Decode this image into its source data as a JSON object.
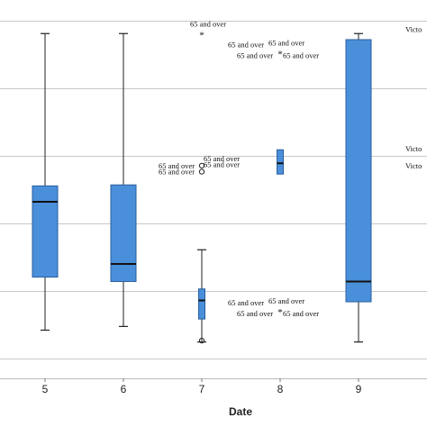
{
  "chart_data": {
    "type": "boxplot",
    "xlabel": "Date",
    "categories": [
      "5",
      "6",
      "7",
      "8",
      "9"
    ],
    "boxes": [
      {
        "category": "5",
        "whisker_low": 0.084,
        "q1": 0.241,
        "median": 0.464,
        "q3": 0.511,
        "whisker_high": 0.962
      },
      {
        "category": "6",
        "whisker_low": 0.095,
        "q1": 0.228,
        "median": 0.28,
        "q3": 0.514,
        "whisker_high": 0.962
      },
      {
        "category": "7",
        "whisker_low": 0.049,
        "q1": 0.117,
        "median": 0.172,
        "q3": 0.206,
        "whisker_high": 0.322
      },
      {
        "category": "8",
        "whisker_low": null,
        "q1": 0.546,
        "median": 0.578,
        "q3": 0.618,
        "whisker_high": null
      },
      {
        "category": "9",
        "whisker_low": 0.049,
        "q1": 0.168,
        "median": 0.228,
        "q3": 0.944,
        "whisker_high": 0.962
      }
    ],
    "outliers": [
      {
        "category": "7",
        "value": 0.962,
        "marker": "star",
        "labels": [
          "65 and over"
        ]
      },
      {
        "category": "7",
        "value": 0.571,
        "marker": "circle",
        "labels": [
          "65 and over",
          "65 and over"
        ]
      },
      {
        "category": "7",
        "value": 0.553,
        "marker": "circle",
        "labels": [
          "65 and over",
          "65 and over"
        ]
      },
      {
        "category": "7",
        "value": 0.053,
        "marker": "circle",
        "labels": []
      },
      {
        "category": "8",
        "value": 0.905,
        "marker": "star",
        "labels": [
          "65 and over",
          "65 and over",
          "65 and over",
          "65 and over"
        ]
      },
      {
        "category": "8",
        "value": 0.141,
        "marker": "star",
        "labels": [
          "65 and over",
          "65 and over",
          "65 and over",
          "65 and over"
        ]
      }
    ],
    "edge_labels": [
      {
        "text": "Victo",
        "value": 0.975
      },
      {
        "text": "Victo",
        "value": 0.622
      },
      {
        "text": "Victo",
        "value": 0.571
      }
    ],
    "y_gridlines": [
      0.0,
      0.2,
      0.4,
      0.6,
      0.8,
      1.0
    ],
    "ylim": [
      0,
      1
    ],
    "grid": true,
    "box_color": "#4a8fd9",
    "box_edge_color": "#2b5f9e",
    "median_color": "#111111",
    "grid_color": "#c8c8c8"
  }
}
